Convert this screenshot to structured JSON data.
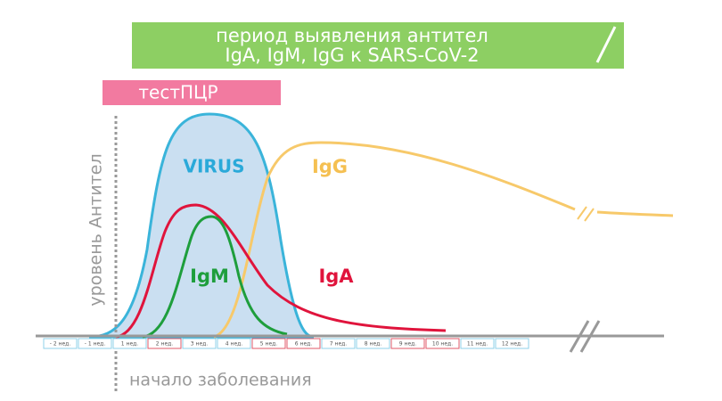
{
  "banner": {
    "line1": "период выявления  антител",
    "line2": "IgA, IgM, IgG к SARS-CoV-2"
  },
  "pcr": "тестПЦР",
  "y_axis_label": "уровень Антител",
  "curves": {
    "virus": "VIRUS",
    "igg": "IgG",
    "igm": "IgM",
    "iga": "IgA"
  },
  "weeks": [
    "- 2 нед.",
    "- 1 нед.",
    "1 нед.",
    "2 нед.",
    "3 нед.",
    "4 нед.",
    "5 нед.",
    "6 нед.",
    "7 нед.",
    "8 нед.",
    "9 нед.",
    "10 нед.",
    "11 нед.",
    "12 нед."
  ],
  "x_axis_label": "начало заболевания"
}
